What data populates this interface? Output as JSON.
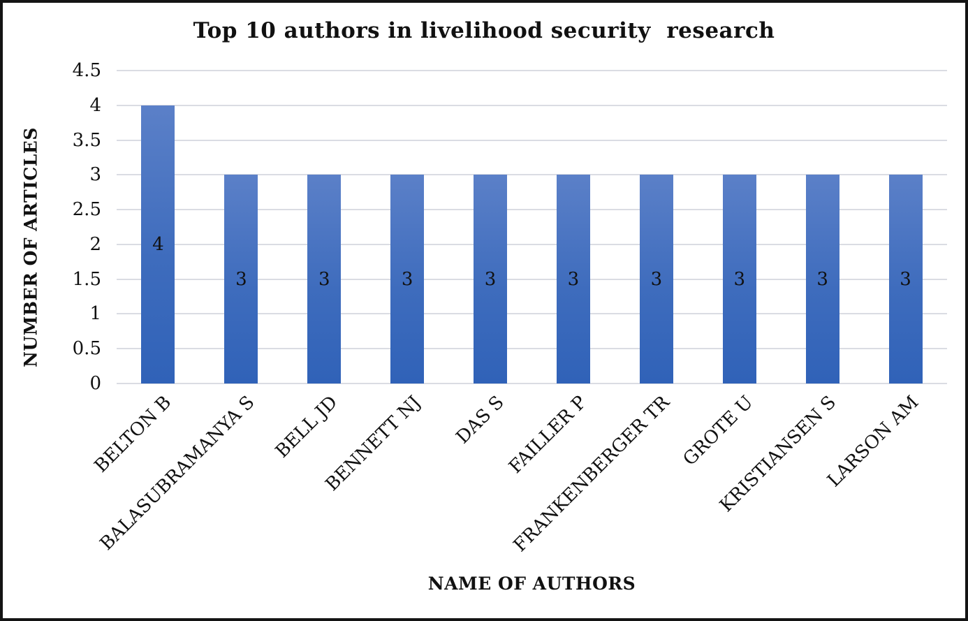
{
  "chart_data": {
    "type": "bar",
    "title": "Top 10 authors in livelihood security  research",
    "xlabel": "NAME OF AUTHORS",
    "ylabel": "NUMBER OF ARTICLES",
    "categories": [
      "BELTON B",
      "BALASUBRAMANYA S",
      "BELL JD",
      "BENNETT NJ",
      "DAS S",
      "FAILLER P",
      "FRANKENBERGER TR",
      "GROTE U",
      "KRISTIANSEN S",
      "LARSON AM"
    ],
    "values": [
      4,
      3,
      3,
      3,
      3,
      3,
      3,
      3,
      3,
      3
    ],
    "data_labels": [
      "4",
      "3",
      "3",
      "3",
      "3",
      "3",
      "3",
      "3",
      "3",
      "3"
    ],
    "ylim": [
      0,
      4.5
    ],
    "ytick_step": 0.5,
    "yticks": [
      "0",
      "0.5",
      "1",
      "1.5",
      "2",
      "2.5",
      "3",
      "3.5",
      "4",
      "4.5"
    ],
    "grid": true,
    "legend": "none",
    "colors": {
      "bar_top": "#5b80c8",
      "bar_bottom": "#3062b8",
      "gridline": "#dadce3",
      "text": "#111111",
      "frame_border": "#141414",
      "background": "#ffffff"
    }
  }
}
